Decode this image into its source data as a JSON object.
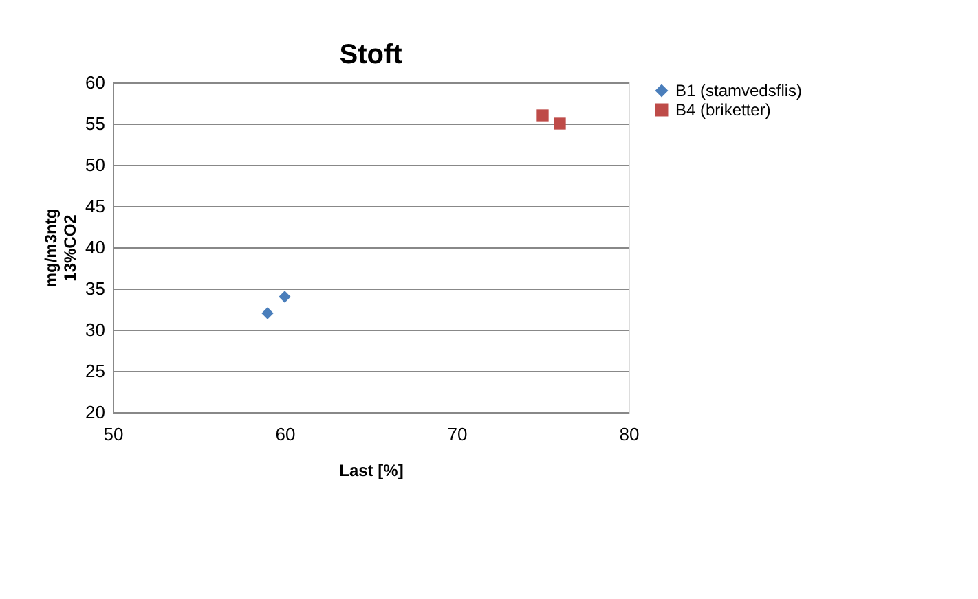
{
  "chart_data": {
    "type": "scatter",
    "title": "Stoft",
    "xlabel": "Last [%]",
    "ylabel": "mg/m3ntg\n13%CO2",
    "series": [
      {
        "name": "B1 (stamvedsflis)",
        "color": "#4a7ebb",
        "marker": "diamond",
        "x": [
          59,
          60
        ],
        "values": [
          32,
          34
        ]
      },
      {
        "name": "B4 (briketter)",
        "color": "#be4b48",
        "marker": "square",
        "x": [
          75,
          76
        ],
        "values": [
          56,
          55
        ]
      }
    ],
    "xlim": [
      50,
      80
    ],
    "xticks": [
      50,
      60,
      70,
      80
    ],
    "ylim": [
      20,
      60
    ],
    "yticks": [
      20,
      25,
      30,
      35,
      40,
      45,
      50,
      55,
      60
    ],
    "grid": "y",
    "legend": "right"
  }
}
